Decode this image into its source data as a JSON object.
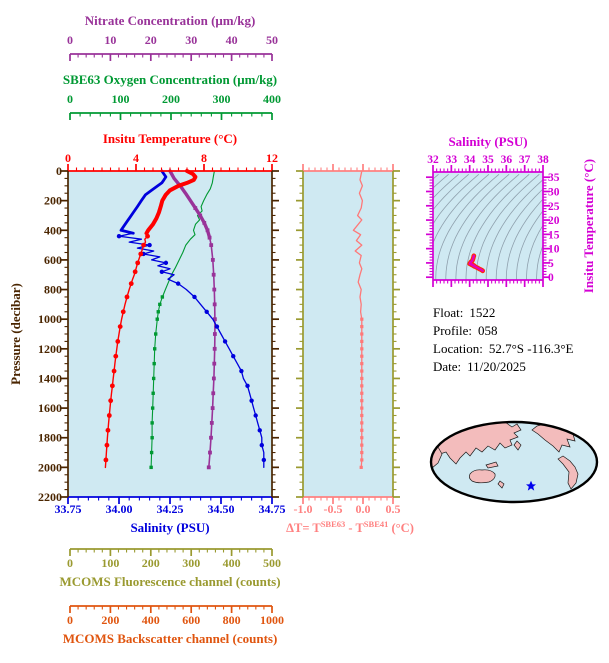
{
  "info": {
    "rows": [
      {
        "label": "Float:",
        "value": "1522"
      },
      {
        "label": "Profile:",
        "value": "058"
      },
      {
        "label": "Location:",
        "value": "52.7°S -116.3°E"
      },
      {
        "label": "Date:",
        "value": "11/20/2025"
      }
    ]
  },
  "axes": {
    "nitrate": {
      "title": "Nitrate Concentration (μm/kg)",
      "ticks": [
        "0",
        "10",
        "20",
        "30",
        "40",
        "50"
      ],
      "range": [
        0,
        50
      ],
      "color": "#993399"
    },
    "oxygen": {
      "title": "SBE63 Oxygen Concentration (μm/kg)",
      "ticks": [
        "0",
        "100",
        "200",
        "300",
        "400"
      ],
      "range": [
        0,
        400
      ],
      "color": "#009933"
    },
    "temperature": {
      "title": "Insitu Temperature (°C)",
      "ticks": [
        "0",
        "4",
        "8",
        "12"
      ],
      "range": [
        0,
        12
      ],
      "color": "#ff0000"
    },
    "pressure": {
      "title": "Pressure (decibar)",
      "ticks": [
        "0",
        "200",
        "400",
        "600",
        "800",
        "1000",
        "1200",
        "1400",
        "1600",
        "1800",
        "2000",
        "2200"
      ],
      "range": [
        0,
        2200
      ],
      "color": "#4a2500"
    },
    "salinity": {
      "title": "Salinity (PSU)",
      "ticks": [
        "33.75",
        "34.00",
        "34.25",
        "34.50",
        "34.75"
      ],
      "range": [
        33.75,
        34.75
      ],
      "color": "#0000dd"
    },
    "fluorescence": {
      "title": "MCOMS Fluorescence channel (counts)",
      "ticks": [
        "0",
        "100",
        "200",
        "300",
        "400",
        "500"
      ],
      "range": [
        0,
        500
      ],
      "color": "#9a9a30"
    },
    "backscatter": {
      "title": "MCOMS Backscatter channel (counts)",
      "ticks": [
        "0",
        "200",
        "400",
        "600",
        "800",
        "1000"
      ],
      "range": [
        0,
        1000
      ],
      "color": "#e0550f"
    },
    "delta_t": {
      "label_prefix": "ΔT= T",
      "label_sup1": "SBE63",
      "label_mid": " - T",
      "label_sup2": "SBE41",
      "label_suffix": " (°C)",
      "ticks": [
        "-1.0",
        "-0.5",
        "0.0",
        "0.5"
      ],
      "range": [
        -1.0,
        0.5
      ],
      "color": "#ff8080"
    },
    "ts_salinity": {
      "title": "Salinity (PSU)",
      "ticks": [
        "32",
        "33",
        "34",
        "35",
        "36",
        "37",
        "38"
      ],
      "range": [
        32,
        38
      ],
      "color": "#d400d4"
    },
    "ts_temperature": {
      "title": "Insitu Temperature (°C)",
      "ticks": [
        "0",
        "5",
        "10",
        "15",
        "20",
        "25",
        "30",
        "35"
      ],
      "range": [
        0,
        35
      ],
      "color": "#d400d4"
    }
  },
  "colors": {
    "panel_bg": "#cfe9f2",
    "contour": "#8fa0ad",
    "land": "#f3bcbc",
    "ocean": "#cfe9f2",
    "outline": "#000000",
    "star": "#0000ee",
    "ts_curve_outer": "#ff2a00",
    "ts_curve_inner": "#e600bb"
  },
  "chart_data": [
    {
      "type": "line",
      "name": "profile_panel",
      "ylabel": "Pressure (decibar)",
      "ylim": [
        0,
        2200
      ],
      "background": "#cfe9f2",
      "series": [
        {
          "name": "Insitu Temperature",
          "units": "°C",
          "color": "#ff0000",
          "xlim": [
            0,
            12
          ],
          "marker": "circle",
          "points": [
            [
              0,
              7.0
            ],
            [
              20,
              7.35
            ],
            [
              40,
              7.5
            ],
            [
              60,
              7.4
            ],
            [
              80,
              7.0
            ],
            [
              100,
              6.5
            ],
            [
              130,
              6.0
            ],
            [
              160,
              5.75
            ],
            [
              200,
              5.55
            ],
            [
              240,
              5.45
            ],
            [
              280,
              5.35
            ],
            [
              320,
              5.2
            ],
            [
              360,
              5.0
            ],
            [
              400,
              4.72
            ],
            [
              420,
              4.62
            ],
            [
              440,
              4.68
            ],
            [
              460,
              4.52
            ],
            [
              480,
              4.56
            ],
            [
              500,
              4.45
            ],
            [
              520,
              4.4
            ],
            [
              540,
              4.34
            ],
            [
              560,
              4.28
            ],
            [
              580,
              4.22
            ],
            [
              600,
              4.16
            ],
            [
              620,
              4.1
            ],
            [
              640,
              4.05
            ],
            [
              660,
              4.0
            ],
            [
              680,
              3.95
            ],
            [
              700,
              3.9
            ],
            [
              730,
              3.8
            ],
            [
              760,
              3.72
            ],
            [
              800,
              3.6
            ],
            [
              850,
              3.47
            ],
            [
              900,
              3.35
            ],
            [
              950,
              3.25
            ],
            [
              1000,
              3.15
            ],
            [
              1050,
              3.07
            ],
            [
              1100,
              3.0
            ],
            [
              1150,
              2.93
            ],
            [
              1200,
              2.87
            ],
            [
              1250,
              2.81
            ],
            [
              1300,
              2.76
            ],
            [
              1350,
              2.71
            ],
            [
              1400,
              2.66
            ],
            [
              1450,
              2.61
            ],
            [
              1500,
              2.56
            ],
            [
              1550,
              2.51
            ],
            [
              1600,
              2.47
            ],
            [
              1650,
              2.43
            ],
            [
              1700,
              2.39
            ],
            [
              1750,
              2.35
            ],
            [
              1800,
              2.32
            ],
            [
              1850,
              2.29
            ],
            [
              1900,
              2.26
            ],
            [
              1950,
              2.23
            ],
            [
              2000,
              2.2
            ]
          ]
        },
        {
          "name": "Salinity",
          "units": "PSU",
          "color": "#0000dd",
          "xlim": [
            33.75,
            34.75
          ],
          "marker": "circle",
          "points": [
            [
              0,
              34.21
            ],
            [
              20,
              34.22
            ],
            [
              40,
              34.23
            ],
            [
              60,
              34.22
            ],
            [
              80,
              34.21
            ],
            [
              100,
              34.19
            ],
            [
              130,
              34.16
            ],
            [
              160,
              34.13
            ],
            [
              200,
              34.11
            ],
            [
              240,
              34.09
            ],
            [
              280,
              34.07
            ],
            [
              320,
              34.05
            ],
            [
              360,
              34.03
            ],
            [
              400,
              34.01
            ],
            [
              420,
              34.07
            ],
            [
              440,
              34.0
            ],
            [
              460,
              34.11
            ],
            [
              480,
              34.05
            ],
            [
              500,
              34.15
            ],
            [
              520,
              34.09
            ],
            [
              540,
              34.17
            ],
            [
              560,
              34.12
            ],
            [
              580,
              34.2
            ],
            [
              600,
              34.16
            ],
            [
              620,
              34.23
            ],
            [
              640,
              34.19
            ],
            [
              660,
              34.25
            ],
            [
              680,
              34.21
            ],
            [
              700,
              34.27
            ],
            [
              730,
              34.24
            ],
            [
              760,
              34.29
            ],
            [
              800,
              34.33
            ],
            [
              850,
              34.37
            ],
            [
              900,
              34.4
            ],
            [
              950,
              34.43
            ],
            [
              1000,
              34.46
            ],
            [
              1050,
              34.48
            ],
            [
              1100,
              34.5
            ],
            [
              1150,
              34.52
            ],
            [
              1200,
              34.54
            ],
            [
              1250,
              34.56
            ],
            [
              1300,
              34.58
            ],
            [
              1350,
              34.6
            ],
            [
              1400,
              34.61
            ],
            [
              1450,
              34.63
            ],
            [
              1500,
              34.64
            ],
            [
              1550,
              34.65
            ],
            [
              1600,
              34.66
            ],
            [
              1650,
              34.67
            ],
            [
              1700,
              34.68
            ],
            [
              1750,
              34.69
            ],
            [
              1800,
              34.7
            ],
            [
              1850,
              34.7
            ],
            [
              1900,
              34.71
            ],
            [
              1950,
              34.71
            ],
            [
              2000,
              34.71
            ]
          ]
        },
        {
          "name": "SBE63 Oxygen Concentration",
          "units": "μm/kg",
          "color": "#009933",
          "xlim": [
            0,
            400
          ],
          "marker": "square",
          "points": [
            [
              0,
              287
            ],
            [
              40,
              285
            ],
            [
              80,
              283
            ],
            [
              120,
              279
            ],
            [
              160,
              272
            ],
            [
              200,
              266
            ],
            [
              240,
              261
            ],
            [
              270,
              263
            ],
            [
              300,
              254
            ],
            [
              330,
              258
            ],
            [
              360,
              250
            ],
            [
              400,
              246
            ],
            [
              430,
              249
            ],
            [
              460,
              240
            ],
            [
              500,
              231
            ],
            [
              550,
              225
            ],
            [
              600,
              218
            ],
            [
              650,
              211
            ],
            [
              700,
              203
            ],
            [
              750,
              197
            ],
            [
              800,
              191
            ],
            [
              850,
              185
            ],
            [
              900,
              180
            ],
            [
              950,
              177
            ],
            [
              1000,
              175
            ],
            [
              1100,
              172
            ],
            [
              1200,
              170
            ],
            [
              1300,
              169
            ],
            [
              1400,
              168
            ],
            [
              1500,
              167
            ],
            [
              1600,
              166
            ],
            [
              1700,
              165
            ],
            [
              1800,
              165
            ],
            [
              1900,
              164
            ],
            [
              2000,
              163
            ]
          ]
        },
        {
          "name": "Nitrate Concentration",
          "units": "μm/kg",
          "color": "#993399",
          "xlim": [
            0,
            50
          ],
          "marker": "square",
          "points": [
            [
              0,
              25
            ],
            [
              50,
              26
            ],
            [
              100,
              27.5
            ],
            [
              150,
              28.8
            ],
            [
              200,
              30
            ],
            [
              250,
              31.2
            ],
            [
              300,
              32.4
            ],
            [
              350,
              33.4
            ],
            [
              400,
              34.2
            ],
            [
              450,
              34.7
            ],
            [
              500,
              35.1
            ],
            [
              600,
              35.5
            ],
            [
              700,
              35.7
            ],
            [
              800,
              35.85
            ],
            [
              900,
              35.95
            ],
            [
              1000,
              36.0
            ],
            [
              1100,
              36.0
            ],
            [
              1200,
              35.95
            ],
            [
              1300,
              35.85
            ],
            [
              1400,
              35.75
            ],
            [
              1500,
              35.6
            ],
            [
              1600,
              35.45
            ],
            [
              1700,
              35.25
            ],
            [
              1800,
              35.05
            ],
            [
              1900,
              34.8
            ],
            [
              2000,
              34.5
            ]
          ]
        }
      ]
    },
    {
      "type": "line",
      "name": "delta_t_panel",
      "ylabel": "Pressure (decibar)",
      "ylim": [
        0,
        2200
      ],
      "xlim": [
        -1.0,
        0.5
      ],
      "background": "#cfe9f2",
      "series": [
        {
          "name": "ΔT = T_SBE63 - T_SBE41",
          "units": "°C",
          "color": "#ff7878",
          "marker": "square",
          "points": [
            [
              0,
              -0.02
            ],
            [
              60,
              -0.05
            ],
            [
              100,
              -0.01
            ],
            [
              150,
              -0.06
            ],
            [
              200,
              -0.01
            ],
            [
              250,
              -0.03
            ],
            [
              300,
              -0.09
            ],
            [
              330,
              -0.02
            ],
            [
              400,
              -0.16
            ],
            [
              430,
              -0.04
            ],
            [
              470,
              -0.11
            ],
            [
              500,
              -0.02
            ],
            [
              540,
              -0.13
            ],
            [
              570,
              -0.03
            ],
            [
              620,
              -0.06
            ],
            [
              660,
              -0.02
            ],
            [
              700,
              -0.05
            ],
            [
              750,
              -0.08
            ],
            [
              800,
              -0.03
            ],
            [
              850,
              -0.05
            ],
            [
              900,
              -0.03
            ],
            [
              950,
              -0.04
            ],
            [
              1000,
              -0.02
            ],
            [
              1050,
              -0.02
            ],
            [
              1100,
              -0.02
            ],
            [
              1150,
              -0.02
            ],
            [
              1200,
              -0.02
            ],
            [
              1250,
              -0.02
            ],
            [
              1300,
              -0.02
            ],
            [
              1350,
              -0.02
            ],
            [
              1400,
              -0.02
            ],
            [
              1450,
              -0.02
            ],
            [
              1500,
              -0.02
            ],
            [
              1550,
              -0.02
            ],
            [
              1600,
              -0.02
            ],
            [
              1650,
              -0.02
            ],
            [
              1700,
              -0.02
            ],
            [
              1750,
              -0.02
            ],
            [
              1800,
              -0.02
            ],
            [
              1850,
              -0.02
            ],
            [
              1900,
              -0.02
            ],
            [
              1950,
              -0.02
            ],
            [
              2000,
              -0.03
            ]
          ]
        }
      ]
    },
    {
      "type": "scatter",
      "name": "ts_diagram",
      "xlabel": "Salinity (PSU)",
      "ylabel": "Insitu Temperature (°C)",
      "xlim": [
        32,
        38
      ],
      "ylim": [
        0,
        35
      ],
      "background": "#cfe9f2",
      "note": "Float T-S curve drawn from the temperature and salinity profiles over gray isopycnal contours"
    }
  ]
}
